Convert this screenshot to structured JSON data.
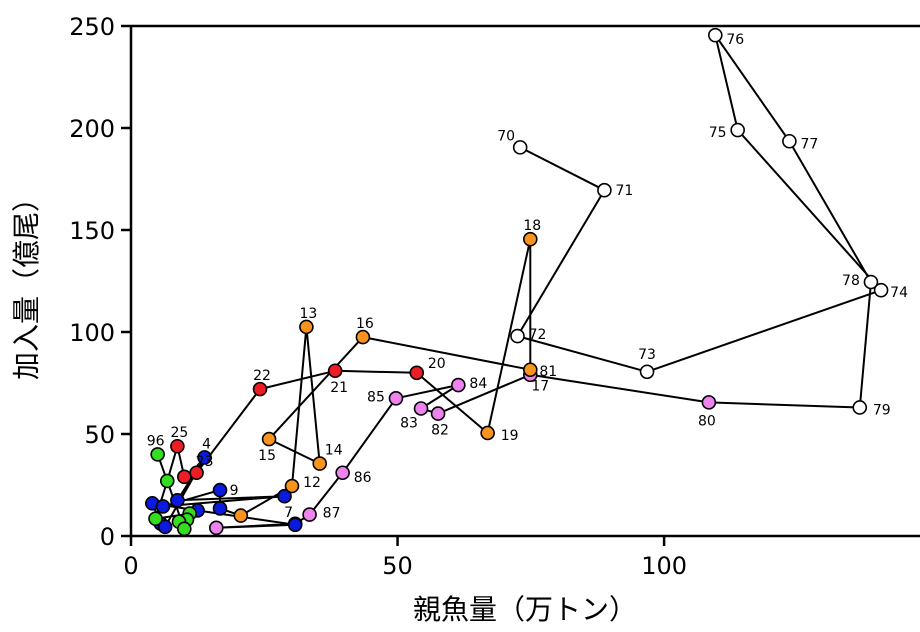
{
  "chart_data": {
    "type": "scatter",
    "xlabel": "親魚量（万トン）",
    "ylabel": "加入量（億尾）",
    "xlim": [
      0,
      148
    ],
    "ylim": [
      0,
      250
    ],
    "xticks": [
      0,
      50,
      100
    ],
    "yticks": [
      0,
      50,
      100,
      150,
      200,
      250
    ],
    "grid": false,
    "connected": true,
    "colors": {
      "white": "#ffffff",
      "orange": "#f7931e",
      "red": "#ee1c25",
      "violet": "#ee82ee",
      "green": "#33dd22",
      "blue": "#0b1bdd"
    },
    "points": [
      {
        "label": "70",
        "x": 73.0,
        "y": 190.5,
        "color": "white"
      },
      {
        "label": "71",
        "x": 88.8,
        "y": 169.5,
        "color": "white"
      },
      {
        "label": "72",
        "x": 72.5,
        "y": 98.0,
        "color": "white"
      },
      {
        "label": "73",
        "x": 96.8,
        "y": 80.5,
        "color": "white"
      },
      {
        "label": "74",
        "x": 140.7,
        "y": 120.5,
        "color": "white"
      },
      {
        "label": "75",
        "x": 113.8,
        "y": 199.0,
        "color": "white"
      },
      {
        "label": "76",
        "x": 109.6,
        "y": 245.5,
        "color": "white"
      },
      {
        "label": "77",
        "x": 123.5,
        "y": 193.5,
        "color": "white"
      },
      {
        "label": "78",
        "x": 138.8,
        "y": 124.5,
        "color": "white"
      },
      {
        "label": "79",
        "x": 136.7,
        "y": 63.0,
        "color": "white"
      },
      {
        "label": "80",
        "x": 108.4,
        "y": 65.5,
        "color": "violet"
      },
      {
        "label": "81",
        "x": 74.9,
        "y": 79.0,
        "color": "violet"
      },
      {
        "label": "82",
        "x": 57.6,
        "y": 60.0,
        "color": "violet"
      },
      {
        "label": "83",
        "x": 54.4,
        "y": 62.5,
        "color": "violet"
      },
      {
        "label": "84",
        "x": 61.4,
        "y": 74.0,
        "color": "violet"
      },
      {
        "label": "85",
        "x": 49.7,
        "y": 67.5,
        "color": "violet"
      },
      {
        "label": "86",
        "x": 39.7,
        "y": 31.0,
        "color": "violet"
      },
      {
        "label": "87",
        "x": 33.5,
        "y": 10.5,
        "color": "violet"
      },
      {
        "label": "",
        "x": 30.8,
        "y": 6.0,
        "color": "violet"
      },
      {
        "label": "",
        "x": 16.0,
        "y": 4.0,
        "color": "violet"
      },
      {
        "label": "",
        "x": 30.8,
        "y": 5.5,
        "color": "blue"
      },
      {
        "label": "",
        "x": 12.5,
        "y": 12.5,
        "color": "blue"
      },
      {
        "label": "",
        "x": 4.0,
        "y": 16.0,
        "color": "blue"
      },
      {
        "label": "",
        "x": 5.6,
        "y": 6.0,
        "color": "blue"
      },
      {
        "label": "",
        "x": 6.4,
        "y": 4.5,
        "color": "blue"
      },
      {
        "label": "4",
        "x": 13.8,
        "y": 38.5,
        "color": "blue"
      },
      {
        "label": "",
        "x": 8.7,
        "y": 17.5,
        "color": "blue"
      },
      {
        "label": "7",
        "x": 28.8,
        "y": 19.5,
        "color": "blue"
      },
      {
        "label": "",
        "x": 6.0,
        "y": 14.5,
        "color": "blue"
      },
      {
        "label": "9",
        "x": 16.7,
        "y": 22.5,
        "color": "blue"
      },
      {
        "label": "",
        "x": 16.7,
        "y": 13.5,
        "color": "blue"
      },
      {
        "label": "",
        "x": 20.6,
        "y": 10.0,
        "color": "orange"
      },
      {
        "label": "12",
        "x": 30.2,
        "y": 24.5,
        "color": "orange"
      },
      {
        "label": "13",
        "x": 32.9,
        "y": 102.5,
        "color": "orange"
      },
      {
        "label": "14",
        "x": 35.4,
        "y": 35.5,
        "color": "orange"
      },
      {
        "label": "15",
        "x": 25.9,
        "y": 47.5,
        "color": "orange"
      },
      {
        "label": "16",
        "x": 43.5,
        "y": 97.5,
        "color": "orange"
      },
      {
        "label": "17",
        "x": 74.9,
        "y": 81.5,
        "color": "orange"
      },
      {
        "label": "18",
        "x": 74.9,
        "y": 145.5,
        "color": "orange"
      },
      {
        "label": "19",
        "x": 66.9,
        "y": 50.5,
        "color": "orange"
      },
      {
        "label": "20",
        "x": 53.6,
        "y": 80.0,
        "color": "red"
      },
      {
        "label": "21",
        "x": 38.3,
        "y": 81.0,
        "color": "red"
      },
      {
        "label": "22",
        "x": 24.2,
        "y": 72.0,
        "color": "red"
      },
      {
        "label": "23",
        "x": 12.3,
        "y": 31.0,
        "color": "red"
      },
      {
        "label": "",
        "x": 10.0,
        "y": 29.0,
        "color": "red"
      },
      {
        "label": "25",
        "x": 8.7,
        "y": 44.0,
        "color": "red"
      },
      {
        "label": "",
        "x": 6.8,
        "y": 27.0,
        "color": "green"
      },
      {
        "label": "",
        "x": 4.6,
        "y": 8.5,
        "color": "green"
      },
      {
        "label": "",
        "x": 11.0,
        "y": 11.0,
        "color": "green"
      },
      {
        "label": "",
        "x": 10.5,
        "y": 8.0,
        "color": "green"
      },
      {
        "label": "",
        "x": 9.0,
        "y": 7.0,
        "color": "green"
      },
      {
        "label": "",
        "x": 10.0,
        "y": 3.5,
        "color": "green"
      },
      {
        "label": "96",
        "x": 5.0,
        "y": 40.0,
        "color": "green"
      }
    ],
    "labelOffsets": {
      "70": [
        -14,
        -12
      ],
      "71": [
        20,
        0
      ],
      "72": [
        20,
        -2
      ],
      "73": [
        0,
        -18
      ],
      "74": [
        18,
        2
      ],
      "75": [
        -20,
        2
      ],
      "76": [
        20,
        4
      ],
      "77": [
        20,
        2
      ],
      "78": [
        -20,
        -2
      ],
      "79": [
        22,
        2
      ],
      "80": [
        -2,
        18
      ],
      "81": [
        18,
        -4
      ],
      "82": [
        2,
        16
      ],
      "83": [
        -12,
        14
      ],
      "84": [
        20,
        -2
      ],
      "85": [
        -20,
        -2
      ],
      "86": [
        20,
        4
      ],
      "87": [
        22,
        -2
      ],
      "4": [
        2,
        -14
      ],
      "7": [
        4,
        16
      ],
      "9": [
        14,
        0
      ],
      "12": [
        20,
        -4
      ],
      "13": [
        2,
        -14
      ],
      "14": [
        14,
        -14
      ],
      "15": [
        -2,
        16
      ],
      "16": [
        2,
        -14
      ],
      "17": [
        10,
        16
      ],
      "18": [
        2,
        -14
      ],
      "19": [
        22,
        2
      ],
      "20": [
        20,
        -10
      ],
      "21": [
        4,
        16
      ],
      "22": [
        2,
        -14
      ],
      "23": [
        8,
        -12
      ],
      "25": [
        2,
        -14
      ],
      "96": [
        -2,
        -14
      ]
    }
  }
}
